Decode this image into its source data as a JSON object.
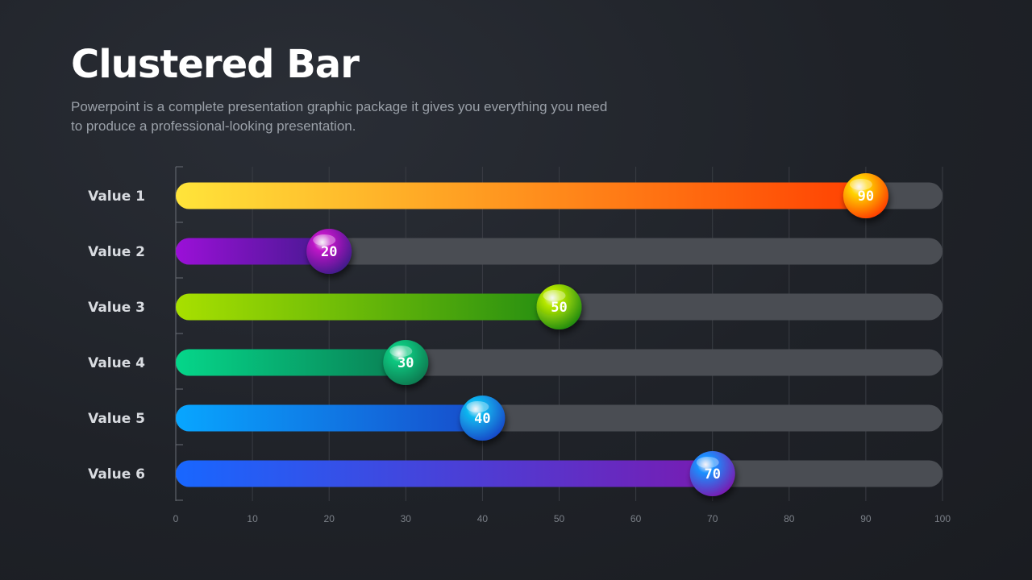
{
  "title": "Clustered Bar",
  "subtitle": "Powerpoint is a complete presentation graphic package it gives you everything you need to produce a professional-looking presentation.",
  "chart_data": {
    "type": "bar",
    "orientation": "horizontal",
    "categories": [
      "Value 1",
      "Value 2",
      "Value 3",
      "Value 4",
      "Value 5",
      "Value 6"
    ],
    "values": [
      90,
      20,
      50,
      30,
      40,
      70
    ],
    "value_labels": [
      "90",
      "20",
      "50",
      "30",
      "40",
      "70"
    ],
    "xlim": [
      0,
      100
    ],
    "xticks": [
      0,
      10,
      20,
      30,
      40,
      50,
      60,
      70,
      80,
      90,
      100
    ],
    "grid": true,
    "colors": [
      [
        "#ffe43a",
        "#ff3d00"
      ],
      [
        "#9b10d8",
        "#3f1a8a"
      ],
      [
        "#a8e000",
        "#1f8a12"
      ],
      [
        "#05d68a",
        "#0a7a50"
      ],
      [
        "#08a6ff",
        "#1848c8"
      ],
      [
        "#1867ff",
        "#7a1ab0"
      ]
    ],
    "bubble_colors": [
      "#ffd400",
      "#c018c8",
      "#b8e800",
      "#10c880",
      "#10b8f0",
      "#1a90ff"
    ],
    "track_color": "#4a4d53"
  }
}
